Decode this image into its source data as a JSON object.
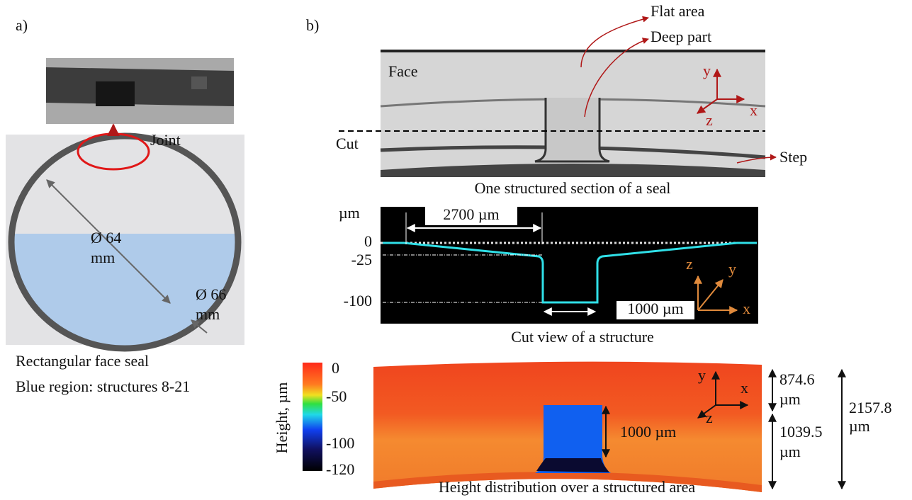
{
  "panel_a": {
    "label": "a)",
    "joint": "Joint",
    "inner_diameter": [
      "Ø 64",
      "mm"
    ],
    "outer_diameter": [
      "Ø 66",
      "mm"
    ],
    "caption": [
      "Rectangular face seal",
      "Blue region: structures 8-21"
    ]
  },
  "panel_b": {
    "label": "b)",
    "section": {
      "flat_area": "Flat area",
      "deep_part": "Deep part",
      "face": "Face",
      "cut": "Cut",
      "step": "Step",
      "axes": [
        "y",
        "x",
        "z"
      ],
      "caption": "One structured section of a seal"
    },
    "cut_view": {
      "unit": "µm",
      "ticks": [
        0,
        -25,
        -100
      ],
      "length": "2700 µm",
      "width": "1000 µm",
      "axes": [
        "z",
        "y",
        "x"
      ],
      "caption": "Cut view of a structure"
    },
    "height_map": {
      "colorbar_label": "Height, µm",
      "colorbar_ticks": [
        0,
        -50,
        -100,
        -120
      ],
      "axes": [
        "y",
        "x",
        "z"
      ],
      "width": "1000 µm",
      "flat_width": [
        "874.6",
        "µm"
      ],
      "deep_width": [
        "1039.5",
        "µm"
      ],
      "total_width": [
        "2157.8",
        "µm"
      ],
      "caption": "Height distribution over a structured area"
    }
  }
}
